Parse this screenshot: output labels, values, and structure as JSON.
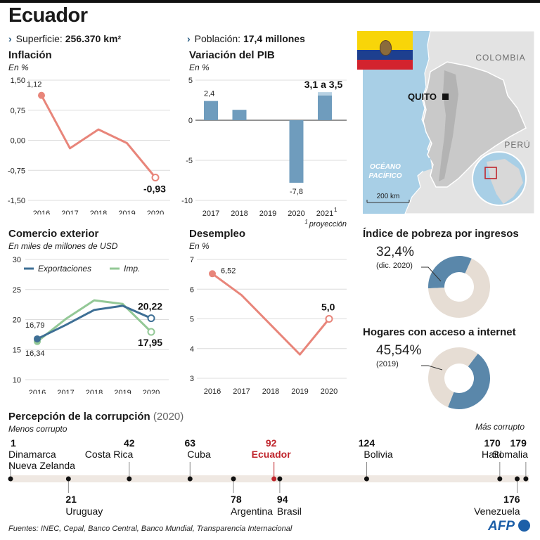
{
  "title": "Ecuador",
  "facts": {
    "superficie_label": "Superficie:",
    "superficie_value": "256.370 km²",
    "poblacion_label": "Población:",
    "poblacion_value": "17,4 millones"
  },
  "colors": {
    "salmon": "#e8857a",
    "steel": "#6f9cbd",
    "dark_blue": "#3e6f95",
    "green": "#93c896",
    "beige": "#e6ddd4",
    "red": "#c0262d"
  },
  "map": {
    "labels": {
      "colombia": "COLOMBIA",
      "peru": "PERÚ",
      "quito": "QUITO",
      "ocean": "OCÉANO\nPACÍFICO",
      "scale": "200 km"
    },
    "flag_colors": [
      "#f8d509",
      "#1d3f8f",
      "#d3232e"
    ]
  },
  "chart_data": [
    {
      "id": "inflacion",
      "type": "line",
      "title": "Inflación",
      "unit": "En %",
      "x": [
        "2016",
        "2017",
        "2018",
        "2019",
        "2020"
      ],
      "series": [
        {
          "values": [
            1.12,
            -0.2,
            0.27,
            -0.07,
            -0.93
          ]
        }
      ],
      "ylim": [
        -1.5,
        1.5
      ],
      "yticks": [
        "1,50",
        "0,75",
        "0,00",
        "-0,75",
        "-1,50"
      ],
      "labels": {
        "first": "1,12",
        "last": "-0,93"
      }
    },
    {
      "id": "pib",
      "type": "bar",
      "title": "Variación del PIB",
      "unit": "En %",
      "categories": [
        "2017",
        "2018",
        "2019",
        "2020",
        "2021"
      ],
      "values": [
        2.4,
        1.3,
        0.0,
        -7.8,
        3.1
      ],
      "projection_high": 3.5,
      "ylim": [
        -10,
        5
      ],
      "yticks": [
        "5",
        "0",
        "-5",
        "-10"
      ],
      "labels": {
        "2017": "2,4",
        "2020": "-7,8",
        "2021": "3,1 a 3,5"
      },
      "footnote": "proyección",
      "footnote_mark": "1"
    },
    {
      "id": "comercio",
      "type": "line",
      "title": "Comercio exterior",
      "unit": "En miles de millones de USD",
      "x": [
        "2016",
        "2017",
        "2018",
        "2019",
        "2020"
      ],
      "series": [
        {
          "name": "Exportaciones",
          "values": [
            16.79,
            19.1,
            21.6,
            22.3,
            20.22
          ]
        },
        {
          "name": "Imp.",
          "values": [
            16.34,
            20.1,
            23.2,
            22.6,
            17.95
          ]
        }
      ],
      "ylim": [
        10,
        30
      ],
      "yticks": [
        "30",
        "25",
        "20",
        "15",
        "10"
      ],
      "labels": {
        "exp_first": "16,79",
        "imp_first": "16,34",
        "exp_last": "20,22",
        "imp_last": "17,95"
      }
    },
    {
      "id": "desempleo",
      "type": "line",
      "title": "Desempleo",
      "unit": "En %",
      "x": [
        "2016",
        "2017",
        "2018",
        "2019",
        "2020"
      ],
      "series": [
        {
          "values": [
            6.52,
            5.8,
            4.8,
            3.8,
            5.0
          ]
        }
      ],
      "ylim": [
        3,
        7
      ],
      "yticks": [
        "7",
        "6",
        "5",
        "4",
        "3"
      ],
      "labels": {
        "first": "6,52",
        "last": "5,0"
      }
    },
    {
      "id": "pobreza",
      "type": "pie",
      "title": "Índice de pobreza por ingresos",
      "value_label": "32,4%",
      "sub": "(dic. 2020)",
      "values": [
        32.4,
        67.6
      ]
    },
    {
      "id": "internet",
      "type": "pie",
      "title": "Hogares con acceso a internet",
      "value_label": "45,54%",
      "sub": "(2019)",
      "values": [
        45.54,
        54.46
      ]
    }
  ],
  "corruption": {
    "title": "Percepción de la corrupción",
    "year": "(2020)",
    "left_label": "Menos corrupto",
    "right_label": "Más corrupto",
    "range": [
      1,
      180
    ],
    "top": [
      {
        "rank": 1,
        "rank_label": "1",
        "countries": [
          "Dinamarca",
          "Nueva Zelanda"
        ]
      },
      {
        "rank": 42,
        "rank_label": "42",
        "countries": [
          "Costa Rica"
        ]
      },
      {
        "rank": 63,
        "rank_label": "63",
        "countries": [
          "Cuba"
        ]
      },
      {
        "rank": 92,
        "rank_label": "92",
        "countries": [
          "Ecuador"
        ],
        "highlight": true
      },
      {
        "rank": 124,
        "rank_label": "124",
        "countries": [
          "Bolivia"
        ]
      },
      {
        "rank": 170,
        "rank_label": "170",
        "countries": [
          "Haití"
        ]
      },
      {
        "rank": 179,
        "rank_label": "179",
        "countries": [
          "Somalia"
        ]
      }
    ],
    "bottom": [
      {
        "rank": 21,
        "rank_label": "21",
        "countries": [
          "Uruguay"
        ]
      },
      {
        "rank": 78,
        "rank_label": "78",
        "countries": [
          "Argentina"
        ]
      },
      {
        "rank": 94,
        "rank_label": "94",
        "countries": [
          "Brasil"
        ]
      },
      {
        "rank": 176,
        "rank_label": "176",
        "countries": [
          "Venezuela"
        ]
      }
    ]
  },
  "footer": {
    "sources": "Fuentes: INEC, Cepal, Banco Central, Banco Mundial, Transparencia Internacional",
    "logo": "AFP"
  }
}
